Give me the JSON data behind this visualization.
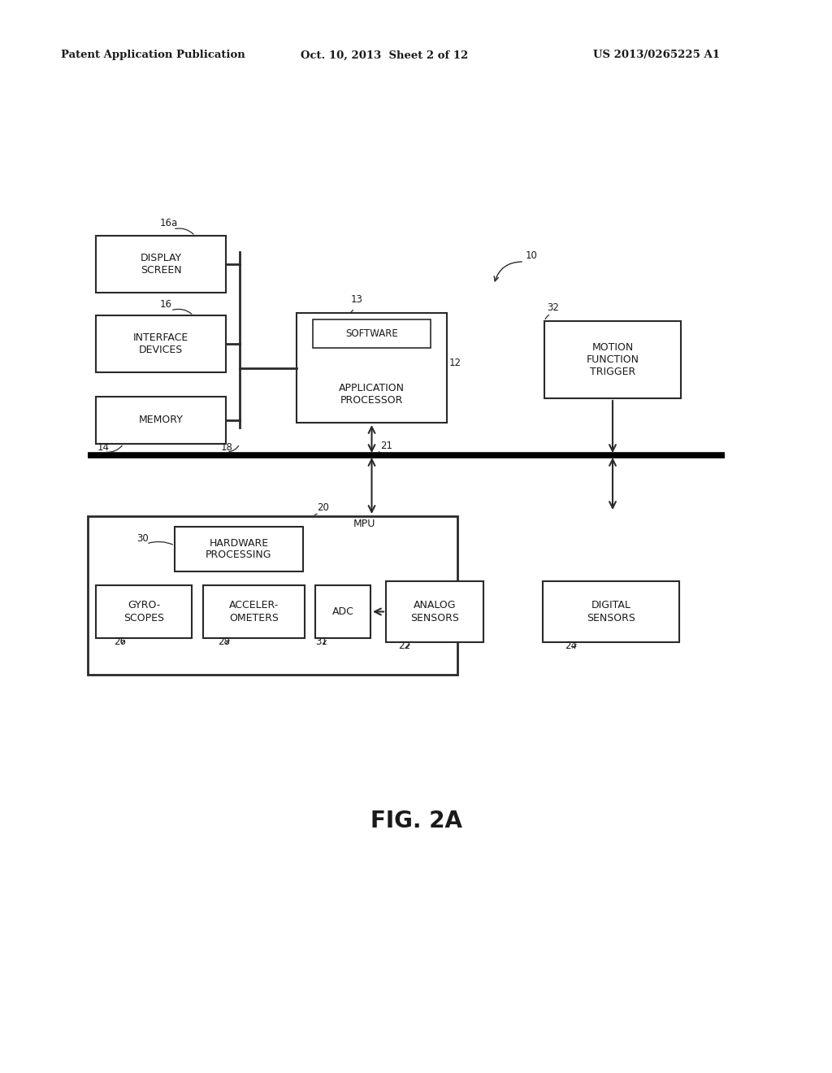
{
  "bg_color": "#ffffff",
  "header_left": "Patent Application Publication",
  "header_center": "Oct. 10, 2013  Sheet 2 of 12",
  "header_right": "US 2013/0265225 A1",
  "fig_label": "FIG. 2A",
  "line_color": "#2a2a2a",
  "text_color": "#1a1a1a"
}
